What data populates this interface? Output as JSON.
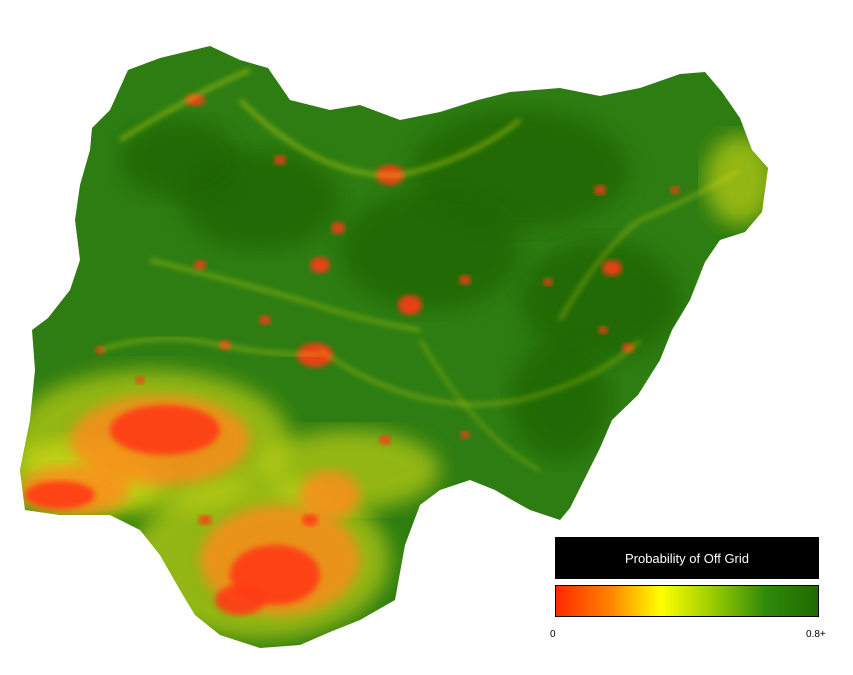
{
  "legend": {
    "title": "Probability of Off Grid",
    "min_label": "0",
    "max_label": "0.8+",
    "gradient_colors": [
      "#ff2a00",
      "#ff8000",
      "#ffff00",
      "#99cc00",
      "#2f8a0a",
      "#1f6b00"
    ]
  },
  "map": {
    "colors": {
      "base_green": "#2e7d12",
      "dark_green": "#1e6405",
      "yellow": "#e6e619",
      "orange": "#ff8a1a",
      "red": "#ff3a14"
    }
  }
}
